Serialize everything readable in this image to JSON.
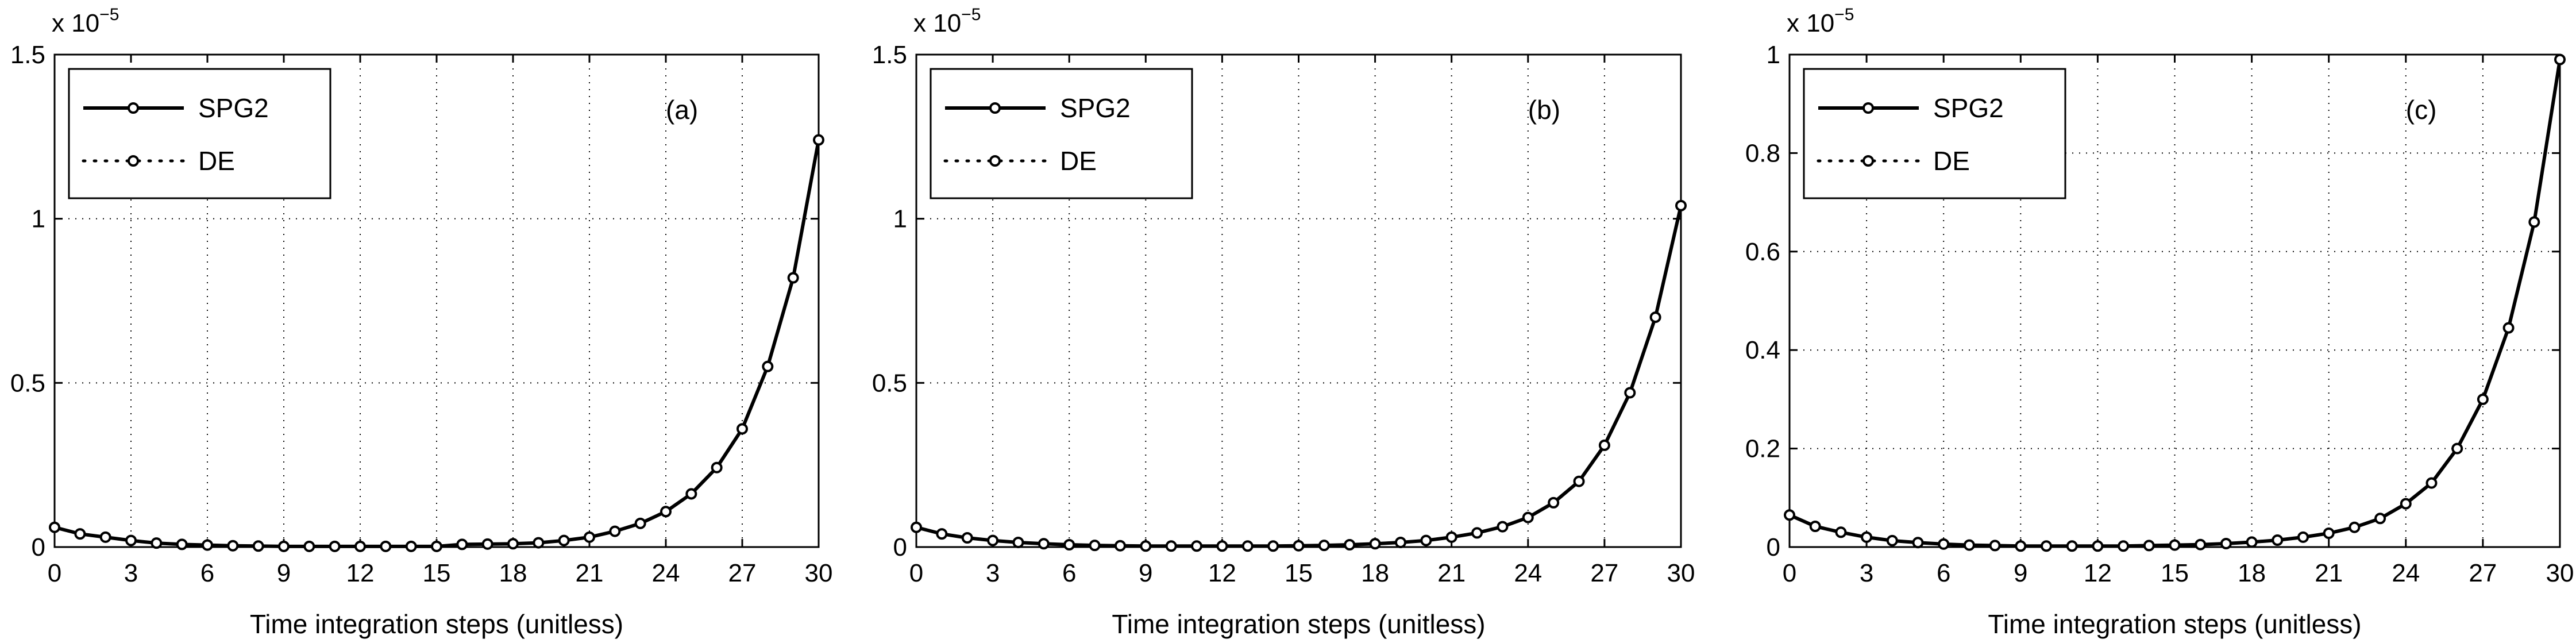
{
  "chart_data": [
    {
      "type": "line",
      "panel_label": "(a)",
      "multiplier": {
        "base": "x 10",
        "exponent": "−5"
      },
      "xlabel": "Time integration steps (unitless)",
      "xlim": [
        0,
        30
      ],
      "ylim": [
        0,
        1.5
      ],
      "xticks": [
        "0",
        "3",
        "6",
        "9",
        "12",
        "15",
        "18",
        "21",
        "24",
        "27",
        "30"
      ],
      "yticks": [
        "0",
        "0.5",
        "1",
        "1.5"
      ],
      "grid": true,
      "legend": {
        "placement": "top-left",
        "entries": [
          "SPG2",
          "DE"
        ]
      },
      "x": [
        0,
        1,
        2,
        3,
        4,
        5,
        6,
        7,
        8,
        9,
        10,
        11,
        12,
        13,
        14,
        15,
        16,
        17,
        18,
        19,
        20,
        21,
        22,
        23,
        24,
        25,
        26,
        27,
        28,
        29,
        30
      ],
      "series": [
        {
          "name": "SPG2",
          "style": "solid",
          "values": [
            0.06,
            0.04,
            0.03,
            0.02,
            0.012,
            0.008,
            0.006,
            0.004,
            0.003,
            0.002,
            0.002,
            0.002,
            0.002,
            0.002,
            0.002,
            0.002,
            0.008,
            0.009,
            0.01,
            0.013,
            0.02,
            0.03,
            0.048,
            0.072,
            0.108,
            0.162,
            0.242,
            0.36,
            0.55,
            0.82,
            1.24
          ]
        },
        {
          "name": "DE",
          "style": "dotted",
          "values": [
            0.06,
            0.04,
            0.03,
            0.02,
            0.012,
            0.008,
            0.006,
            0.004,
            0.003,
            0.002,
            0.002,
            0.002,
            0.002,
            0.002,
            0.002,
            0.002,
            0.008,
            0.009,
            0.01,
            0.013,
            0.02,
            0.03,
            0.048,
            0.072,
            0.108,
            0.162,
            0.242,
            0.36,
            0.55,
            0.82,
            1.24
          ]
        }
      ]
    },
    {
      "type": "line",
      "panel_label": "(b)",
      "multiplier": {
        "base": "x 10",
        "exponent": "−5"
      },
      "xlabel": "Time integration steps (unitless)",
      "xlim": [
        0,
        30
      ],
      "ylim": [
        0,
        1.5
      ],
      "xticks": [
        "0",
        "3",
        "6",
        "9",
        "12",
        "15",
        "18",
        "21",
        "24",
        "27",
        "30"
      ],
      "yticks": [
        "0",
        "0.5",
        "1",
        "1.5"
      ],
      "grid": true,
      "legend": {
        "placement": "top-left",
        "entries": [
          "SPG2",
          "DE"
        ]
      },
      "x": [
        0,
        1,
        2,
        3,
        4,
        5,
        6,
        7,
        8,
        9,
        10,
        11,
        12,
        13,
        14,
        15,
        16,
        17,
        18,
        19,
        20,
        21,
        22,
        23,
        24,
        25,
        26,
        27,
        28,
        29,
        30
      ],
      "series": [
        {
          "name": "SPG2",
          "style": "solid",
          "values": [
            0.06,
            0.04,
            0.028,
            0.02,
            0.014,
            0.01,
            0.007,
            0.005,
            0.004,
            0.003,
            0.003,
            0.003,
            0.003,
            0.003,
            0.003,
            0.004,
            0.005,
            0.007,
            0.01,
            0.014,
            0.02,
            0.03,
            0.043,
            0.062,
            0.09,
            0.135,
            0.2,
            0.31,
            0.47,
            0.7,
            1.04
          ]
        },
        {
          "name": "DE",
          "style": "dotted",
          "values": [
            0.06,
            0.04,
            0.028,
            0.02,
            0.014,
            0.01,
            0.007,
            0.005,
            0.004,
            0.003,
            0.003,
            0.003,
            0.003,
            0.003,
            0.003,
            0.004,
            0.005,
            0.007,
            0.01,
            0.014,
            0.02,
            0.03,
            0.043,
            0.062,
            0.09,
            0.135,
            0.2,
            0.31,
            0.47,
            0.7,
            1.04
          ]
        }
      ]
    },
    {
      "type": "line",
      "panel_label": "(c)",
      "multiplier": {
        "base": "x 10",
        "exponent": "−5"
      },
      "xlabel": "Time integration steps (unitless)",
      "xlim": [
        0,
        30
      ],
      "ylim": [
        0,
        1
      ],
      "xticks": [
        "0",
        "3",
        "6",
        "9",
        "12",
        "15",
        "18",
        "21",
        "24",
        "27",
        "30"
      ],
      "yticks": [
        "0",
        "0.2",
        "0.4",
        "0.6",
        "0.8",
        "1"
      ],
      "grid": true,
      "legend": {
        "placement": "top-left",
        "entries": [
          "SPG2",
          "DE"
        ]
      },
      "x": [
        0,
        1,
        2,
        3,
        4,
        5,
        6,
        7,
        8,
        9,
        10,
        11,
        12,
        13,
        14,
        15,
        16,
        17,
        18,
        19,
        20,
        21,
        22,
        23,
        24,
        25,
        26,
        27,
        28,
        29,
        30
      ],
      "series": [
        {
          "name": "SPG2",
          "style": "solid",
          "values": [
            0.065,
            0.042,
            0.03,
            0.02,
            0.013,
            0.009,
            0.006,
            0.004,
            0.003,
            0.002,
            0.002,
            0.002,
            0.002,
            0.002,
            0.003,
            0.004,
            0.005,
            0.007,
            0.01,
            0.014,
            0.02,
            0.028,
            0.04,
            0.058,
            0.088,
            0.13,
            0.2,
            0.3,
            0.445,
            0.66,
            0.99
          ]
        },
        {
          "name": "DE",
          "style": "dotted",
          "values": [
            0.065,
            0.042,
            0.03,
            0.02,
            0.013,
            0.009,
            0.006,
            0.004,
            0.003,
            0.002,
            0.002,
            0.002,
            0.002,
            0.002,
            0.003,
            0.004,
            0.005,
            0.007,
            0.01,
            0.014,
            0.02,
            0.028,
            0.04,
            0.058,
            0.088,
            0.13,
            0.2,
            0.3,
            0.445,
            0.66,
            0.99
          ]
        }
      ]
    }
  ]
}
